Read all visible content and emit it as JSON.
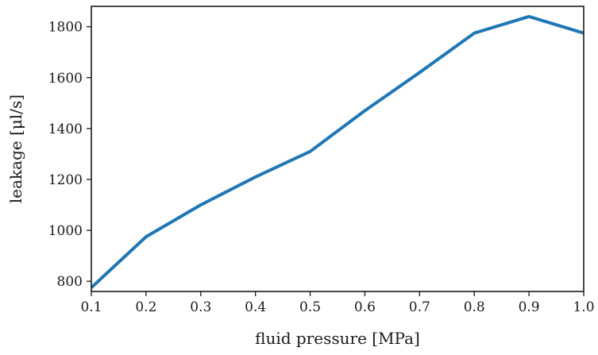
{
  "chart_data": {
    "type": "line",
    "title": "",
    "xlabel": "fluid pressure [MPa]",
    "ylabel": "leakage [μl/s]",
    "xlim": [
      0.1,
      1.0
    ],
    "ylim": [
      760,
      1880
    ],
    "grid": false,
    "x_ticks": [
      "0.1",
      "0.2",
      "0.3",
      "0.4",
      "0.5",
      "0.6",
      "0.7",
      "0.8",
      "0.9",
      "1.0"
    ],
    "y_ticks": [
      "800",
      "1000",
      "1200",
      "1400",
      "1600",
      "1800"
    ],
    "x_tick_values": [
      0.1,
      0.2,
      0.3,
      0.4,
      0.5,
      0.6,
      0.7,
      0.8,
      0.9,
      1.0
    ],
    "y_tick_values": [
      800,
      1000,
      1200,
      1400,
      1600,
      1800
    ],
    "series": [
      {
        "color": "#1f77b4",
        "x": [
          0.1,
          0.2,
          0.3,
          0.4,
          0.5,
          0.6,
          0.7,
          0.8,
          0.9,
          1.0
        ],
        "y": [
          775,
          975,
          1100,
          1210,
          1310,
          1470,
          1620,
          1775,
          1840,
          1775
        ]
      }
    ]
  }
}
